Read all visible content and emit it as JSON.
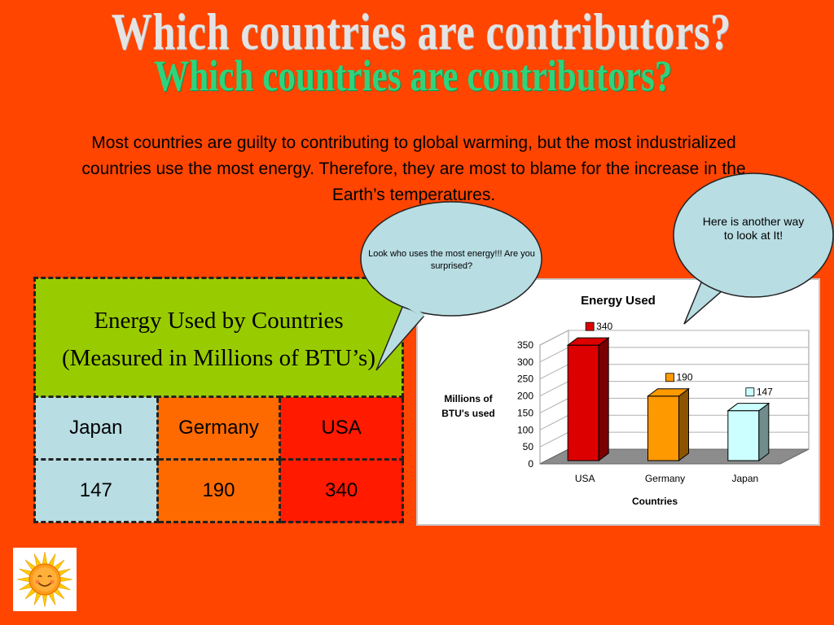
{
  "slide": {
    "title": "Which countries are contributors?",
    "intro": "Most countries are guilty to contributing to global warming, but the most industrialized countries use the most energy. Therefore, they are most to blame for the increase in the Earth’s temperatures."
  },
  "bubbles": {
    "left": "Look who uses the most energy!!! Are you surprised?",
    "right": "Here is another way to look at It!"
  },
  "table": {
    "header_line1": "Energy Used by Countries",
    "header_line2": "(Measured in Millions of BTU’s)",
    "countries": [
      "Japan",
      "Germany",
      "USA"
    ],
    "values": [
      "147",
      "190",
      "340"
    ],
    "colors": {
      "japan": "#b8dde3",
      "germany": "#ff6a00",
      "usa": "#ff1a00"
    }
  },
  "chart_data": {
    "type": "bar",
    "title": "Energy Used",
    "xlabel": "Countries",
    "ylabel": "Millions of BTU's used",
    "categories": [
      "USA",
      "Germany",
      "Japan"
    ],
    "values": [
      340,
      190,
      147
    ],
    "value_labels": [
      "340",
      "190",
      "147"
    ],
    "colors": [
      "#dd0000",
      "#ff9900",
      "#ccffff"
    ],
    "ylim": [
      0,
      350
    ],
    "yticks": [
      0,
      50,
      100,
      150,
      200,
      250,
      300,
      350
    ],
    "grid": true,
    "three_d": true
  }
}
